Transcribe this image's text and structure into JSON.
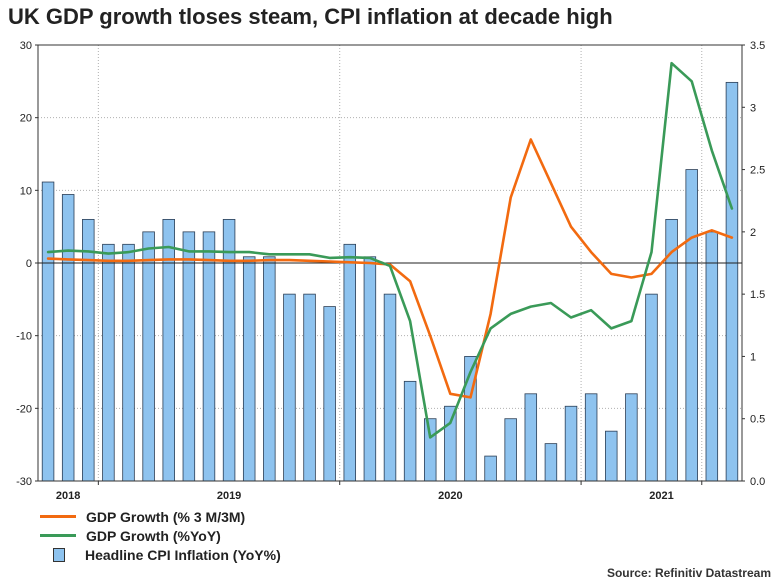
{
  "chart_data": {
    "type": "bar+line",
    "title": "UK GDP growth tloses steam, CPI inflation at decade high",
    "source": "Source: Refinitiv Datastream",
    "left_axis": {
      "ylim": [
        -30,
        30
      ],
      "ticks": [
        "30",
        "20",
        "10",
        "0",
        "-10",
        "-20",
        "-30"
      ],
      "tick_values": [
        30,
        20,
        10,
        0,
        -10,
        -20,
        -30
      ]
    },
    "right_axis": {
      "ylim": [
        0.0,
        3.5
      ],
      "ticks": [
        "3.5",
        "3",
        "2.5",
        "2",
        "1.5",
        "1",
        "0.5",
        "0.0"
      ],
      "tick_values": [
        3.5,
        3.0,
        2.5,
        2.0,
        1.5,
        1.0,
        0.5,
        0.0
      ]
    },
    "x_labels": [
      "2018",
      "2019",
      "2020",
      "2021"
    ],
    "x_label_positions": [
      1.5,
      9.5,
      20.5,
      31
    ],
    "year_boundaries": [
      3,
      15,
      27,
      33
    ],
    "series": [
      {
        "name": "GDP Growth (% 3 M/3M)",
        "axis": "left",
        "color": "#f26a10",
        "points": [
          [
            0,
            0.6
          ],
          [
            1,
            0.5
          ],
          [
            2,
            0.4
          ],
          [
            3,
            0.3
          ],
          [
            4,
            0.3
          ],
          [
            5,
            0.4
          ],
          [
            6,
            0.5
          ],
          [
            7,
            0.5
          ],
          [
            8,
            0.4
          ],
          [
            9,
            0.3
          ],
          [
            10,
            0.3
          ],
          [
            11,
            0.4
          ],
          [
            12,
            0.4
          ],
          [
            13,
            0.3
          ],
          [
            14,
            0.2
          ],
          [
            15,
            0.1
          ],
          [
            16,
            0
          ],
          [
            17,
            -0.2
          ],
          [
            18,
            -2.5
          ],
          [
            19,
            -10
          ],
          [
            20,
            -18
          ],
          [
            21,
            -18.5
          ],
          [
            22,
            -7
          ],
          [
            23,
            9
          ],
          [
            24,
            17
          ],
          [
            25,
            11
          ],
          [
            26,
            5
          ],
          [
            27,
            1.5
          ],
          [
            28,
            -1.5
          ],
          [
            29,
            -2
          ],
          [
            30,
            -1.5
          ],
          [
            31,
            1.5
          ],
          [
            32,
            3.5
          ],
          [
            33,
            4.5
          ],
          [
            34,
            3.5
          ]
        ]
      },
      {
        "name": "GDP Growth (%YoY)",
        "axis": "left",
        "color": "#3a9a58",
        "points": [
          [
            0,
            1.5
          ],
          [
            1,
            1.7
          ],
          [
            2,
            1.6
          ],
          [
            3,
            1.3
          ],
          [
            4,
            1.5
          ],
          [
            5,
            2
          ],
          [
            6,
            2.2
          ],
          [
            7,
            1.6
          ],
          [
            8,
            1.6
          ],
          [
            9,
            1.5
          ],
          [
            10,
            1.5
          ],
          [
            11,
            1.2
          ],
          [
            12,
            1.2
          ],
          [
            13,
            1.2
          ],
          [
            14,
            0.7
          ],
          [
            15,
            0.8
          ],
          [
            16,
            0.7
          ],
          [
            17,
            -0.4
          ],
          [
            18,
            -8
          ],
          [
            19,
            -24
          ],
          [
            20,
            -22
          ],
          [
            21,
            -15
          ],
          [
            22,
            -9
          ],
          [
            23,
            -7
          ],
          [
            24,
            -6
          ],
          [
            25,
            -5.5
          ],
          [
            26,
            -7.5
          ],
          [
            27,
            -6.5
          ],
          [
            28,
            -9
          ],
          [
            29,
            -8
          ],
          [
            30,
            1.5
          ],
          [
            31,
            27.5
          ],
          [
            32,
            25
          ],
          [
            33,
            15.5
          ],
          [
            34,
            7.5
          ]
        ]
      }
    ],
    "bars": {
      "name": "Headline CPI Inflation (YoY%)",
      "axis": "right",
      "color": "#8ec3ef",
      "values": [
        2.4,
        2.3,
        2.1,
        1.9,
        1.9,
        2.0,
        2.1,
        2.0,
        2.0,
        2.1,
        1.8,
        1.8,
        1.5,
        1.5,
        1.4,
        1.9,
        1.8,
        1.5,
        0.8,
        0.5,
        0.6,
        1.0,
        0.2,
        0.5,
        0.7,
        0.3,
        0.6,
        0.7,
        0.4,
        0.7,
        1.5,
        2.1,
        2.5,
        2.0,
        3.2
      ]
    },
    "grid": true,
    "legend_position": "bottom-left"
  }
}
